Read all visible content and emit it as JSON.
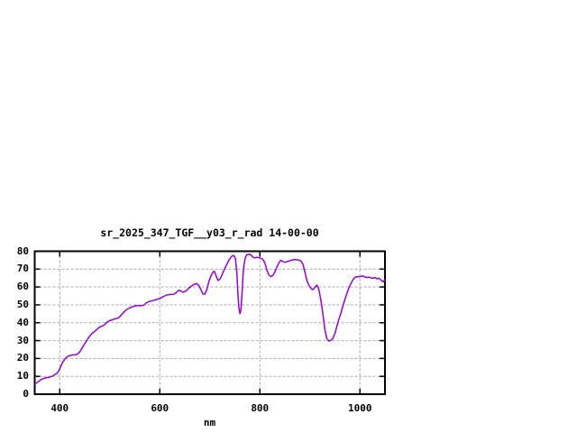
{
  "window": {
    "background": "#ffffff"
  },
  "chart_data": {
    "type": "line",
    "title": "sr_2025_347_TGF__y03_r_rad 14-00-00",
    "xlabel": "nm",
    "ylabel": "",
    "xlim": [
      350,
      1050
    ],
    "ylim": [
      0,
      80
    ],
    "xticks": [
      400,
      600,
      800,
      1000
    ],
    "yticks": [
      0,
      10,
      20,
      30,
      40,
      50,
      60,
      70,
      80
    ],
    "grid": true,
    "legend_position": "none",
    "line_color": "#9400d3",
    "grid_color": "#a8a8a8",
    "border_color": "#000000",
    "series": [
      {
        "name": "sr_2025_347_TGF__y03_r_rad 14-00-00",
        "points": [
          [
            350,
            5.8
          ],
          [
            354,
            6.3
          ],
          [
            358,
            7.2
          ],
          [
            362,
            8.0
          ],
          [
            366,
            8.6
          ],
          [
            370,
            9.0
          ],
          [
            374,
            9.3
          ],
          [
            378,
            9.4
          ],
          [
            382,
            9.8
          ],
          [
            386,
            10.2
          ],
          [
            390,
            11.0
          ],
          [
            394,
            11.5
          ],
          [
            398,
            13.0
          ],
          [
            402,
            15.5
          ],
          [
            406,
            18.0
          ],
          [
            410,
            19.5
          ],
          [
            414,
            20.8
          ],
          [
            418,
            21.4
          ],
          [
            422,
            21.7
          ],
          [
            426,
            22.0
          ],
          [
            430,
            22.0
          ],
          [
            434,
            22.2
          ],
          [
            438,
            23.0
          ],
          [
            442,
            24.5
          ],
          [
            446,
            26.5
          ],
          [
            450,
            28.3
          ],
          [
            454,
            30.0
          ],
          [
            458,
            31.8
          ],
          [
            462,
            33.2
          ],
          [
            466,
            34.3
          ],
          [
            470,
            35.2
          ],
          [
            474,
            36.2
          ],
          [
            478,
            37.2
          ],
          [
            482,
            37.8
          ],
          [
            486,
            38.2
          ],
          [
            490,
            39.0
          ],
          [
            494,
            40.2
          ],
          [
            498,
            41.0
          ],
          [
            502,
            41.4
          ],
          [
            506,
            41.7
          ],
          [
            510,
            42.2
          ],
          [
            514,
            42.4
          ],
          [
            518,
            42.8
          ],
          [
            522,
            44.0
          ],
          [
            526,
            45.2
          ],
          [
            530,
            46.5
          ],
          [
            534,
            47.4
          ],
          [
            538,
            48.0
          ],
          [
            542,
            48.6
          ],
          [
            546,
            49.0
          ],
          [
            550,
            49.3
          ],
          [
            554,
            49.5
          ],
          [
            558,
            49.5
          ],
          [
            562,
            49.5
          ],
          [
            566,
            49.7
          ],
          [
            570,
            50.2
          ],
          [
            574,
            51.3
          ],
          [
            578,
            51.8
          ],
          [
            582,
            52.1
          ],
          [
            586,
            52.4
          ],
          [
            590,
            52.7
          ],
          [
            594,
            53.0
          ],
          [
            598,
            53.3
          ],
          [
            602,
            53.8
          ],
          [
            606,
            54.5
          ],
          [
            610,
            55.0
          ],
          [
            614,
            55.5
          ],
          [
            618,
            55.7
          ],
          [
            622,
            55.8
          ],
          [
            626,
            55.9
          ],
          [
            630,
            56.2
          ],
          [
            634,
            57.2
          ],
          [
            638,
            58.2
          ],
          [
            642,
            57.8
          ],
          [
            646,
            57.1
          ],
          [
            650,
            57.4
          ],
          [
            654,
            58.2
          ],
          [
            658,
            59.3
          ],
          [
            662,
            60.3
          ],
          [
            666,
            61.0
          ],
          [
            670,
            61.6
          ],
          [
            674,
            61.9
          ],
          [
            678,
            60.8
          ],
          [
            682,
            58.5
          ],
          [
            686,
            56.2
          ],
          [
            690,
            56.0
          ],
          [
            694,
            58.5
          ],
          [
            698,
            63.0
          ],
          [
            702,
            66.0
          ],
          [
            706,
            68.2
          ],
          [
            709,
            68.8
          ],
          [
            712,
            66.8
          ],
          [
            716,
            63.7
          ],
          [
            720,
            64.3
          ],
          [
            724,
            66.5
          ],
          [
            728,
            69.3
          ],
          [
            732,
            71.5
          ],
          [
            736,
            73.8
          ],
          [
            740,
            75.8
          ],
          [
            744,
            77.2
          ],
          [
            748,
            77.6
          ],
          [
            751,
            76.0
          ],
          [
            754,
            68.0
          ],
          [
            756,
            57.0
          ],
          [
            758,
            48.5
          ],
          [
            760,
            45.0
          ],
          [
            762,
            47.0
          ],
          [
            764,
            55.0
          ],
          [
            766,
            65.0
          ],
          [
            768,
            72.0
          ],
          [
            771,
            76.5
          ],
          [
            774,
            78.0
          ],
          [
            778,
            78.3
          ],
          [
            782,
            78.0
          ],
          [
            786,
            76.6
          ],
          [
            790,
            76.3
          ],
          [
            794,
            76.6
          ],
          [
            798,
            76.4
          ],
          [
            802,
            76.0
          ],
          [
            806,
            75.4
          ],
          [
            810,
            73.5
          ],
          [
            814,
            69.5
          ],
          [
            818,
            66.8
          ],
          [
            822,
            65.8
          ],
          [
            826,
            66.4
          ],
          [
            830,
            68.5
          ],
          [
            834,
            71.0
          ],
          [
            838,
            73.5
          ],
          [
            842,
            75.0
          ],
          [
            846,
            74.2
          ],
          [
            850,
            73.8
          ],
          [
            854,
            74.1
          ],
          [
            858,
            74.5
          ],
          [
            862,
            74.9
          ],
          [
            866,
            75.2
          ],
          [
            870,
            75.3
          ],
          [
            874,
            75.2
          ],
          [
            878,
            75.1
          ],
          [
            882,
            74.5
          ],
          [
            886,
            72.8
          ],
          [
            890,
            68.5
          ],
          [
            894,
            63.5
          ],
          [
            898,
            61.0
          ],
          [
            902,
            59.2
          ],
          [
            906,
            58.5
          ],
          [
            910,
            59.8
          ],
          [
            914,
            61.0
          ],
          [
            918,
            58.5
          ],
          [
            922,
            52.5
          ],
          [
            926,
            44.5
          ],
          [
            930,
            36.0
          ],
          [
            934,
            31.0
          ],
          [
            938,
            29.8
          ],
          [
            942,
            30.2
          ],
          [
            946,
            31.3
          ],
          [
            950,
            34.0
          ],
          [
            954,
            38.0
          ],
          [
            958,
            42.0
          ],
          [
            962,
            45.5
          ],
          [
            966,
            49.5
          ],
          [
            970,
            53.0
          ],
          [
            974,
            56.5
          ],
          [
            978,
            59.5
          ],
          [
            982,
            62.0
          ],
          [
            986,
            64.0
          ],
          [
            990,
            65.3
          ],
          [
            994,
            65.8
          ],
          [
            998,
            65.7
          ],
          [
            1002,
            65.9
          ],
          [
            1006,
            66.1
          ],
          [
            1010,
            65.6
          ],
          [
            1014,
            65.3
          ],
          [
            1018,
            65.5
          ],
          [
            1022,
            65.1
          ],
          [
            1026,
            64.9
          ],
          [
            1030,
            65.3
          ],
          [
            1034,
            64.6
          ],
          [
            1038,
            64.9
          ],
          [
            1042,
            63.9
          ],
          [
            1046,
            62.9
          ],
          [
            1050,
            63.9
          ]
        ]
      }
    ]
  }
}
